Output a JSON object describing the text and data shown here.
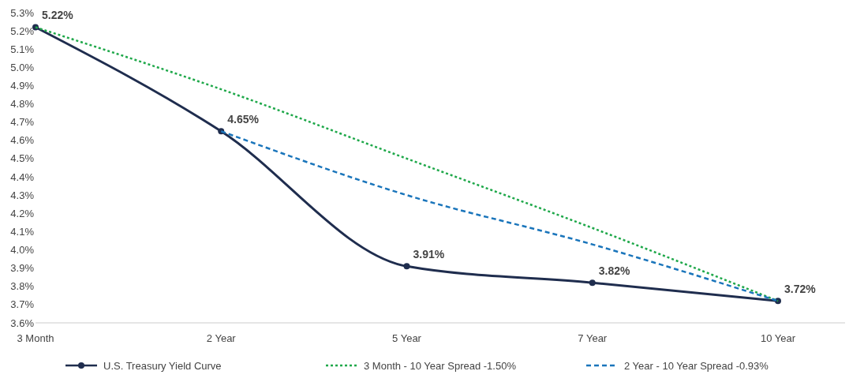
{
  "chart_data": {
    "type": "line",
    "categories": [
      "3 Month",
      "2 Year",
      "5 Year",
      "7 Year",
      "10 Year"
    ],
    "series": [
      {
        "name": "U.S. Treasury Yield Curve",
        "color": "#1f2d4e",
        "values": [
          5.22,
          4.65,
          3.91,
          3.82,
          3.72
        ],
        "value_labels": [
          "5.22%",
          "4.65%",
          "3.91%",
          "3.82%",
          "3.72%"
        ],
        "marker": "circle",
        "line_style": "solid"
      },
      {
        "name": "3 Month - 10 Year Spread -1.50%",
        "color": "#1fa84a",
        "values": [
          5.22,
          4.88,
          4.5,
          4.12,
          3.72
        ],
        "marker": "none",
        "line_style": "dotted"
      },
      {
        "name": "2 Year - 10 Year Spread -0.93%",
        "color": "#1a75bb",
        "values": [
          null,
          4.65,
          4.3,
          4.03,
          3.72
        ],
        "marker": "none",
        "line_style": "dashed"
      }
    ],
    "ylim": [
      3.6,
      5.3
    ],
    "yticks": [
      {
        "value": 3.6,
        "label": "3.6%"
      },
      {
        "value": 3.7,
        "label": "3.7%"
      },
      {
        "value": 3.8,
        "label": "3.8%"
      },
      {
        "value": 3.9,
        "label": "3.9%"
      },
      {
        "value": 4.0,
        "label": "4.0%"
      },
      {
        "value": 4.1,
        "label": "4.1%"
      },
      {
        "value": 4.2,
        "label": "4.2%"
      },
      {
        "value": 4.3,
        "label": "4.3%"
      },
      {
        "value": 4.4,
        "label": "4.4%"
      },
      {
        "value": 4.5,
        "label": "4.5%"
      },
      {
        "value": 4.6,
        "label": "4.6%"
      },
      {
        "value": 4.7,
        "label": "4.7%"
      },
      {
        "value": 4.8,
        "label": "4.8%"
      },
      {
        "value": 4.9,
        "label": "4.9%"
      },
      {
        "value": 5.0,
        "label": "5.0%"
      },
      {
        "value": 5.1,
        "label": "5.1%"
      },
      {
        "value": 5.2,
        "label": "5.2%"
      },
      {
        "value": 5.3,
        "label": "5.3%"
      }
    ],
    "grid": false,
    "legend": "bottom"
  }
}
